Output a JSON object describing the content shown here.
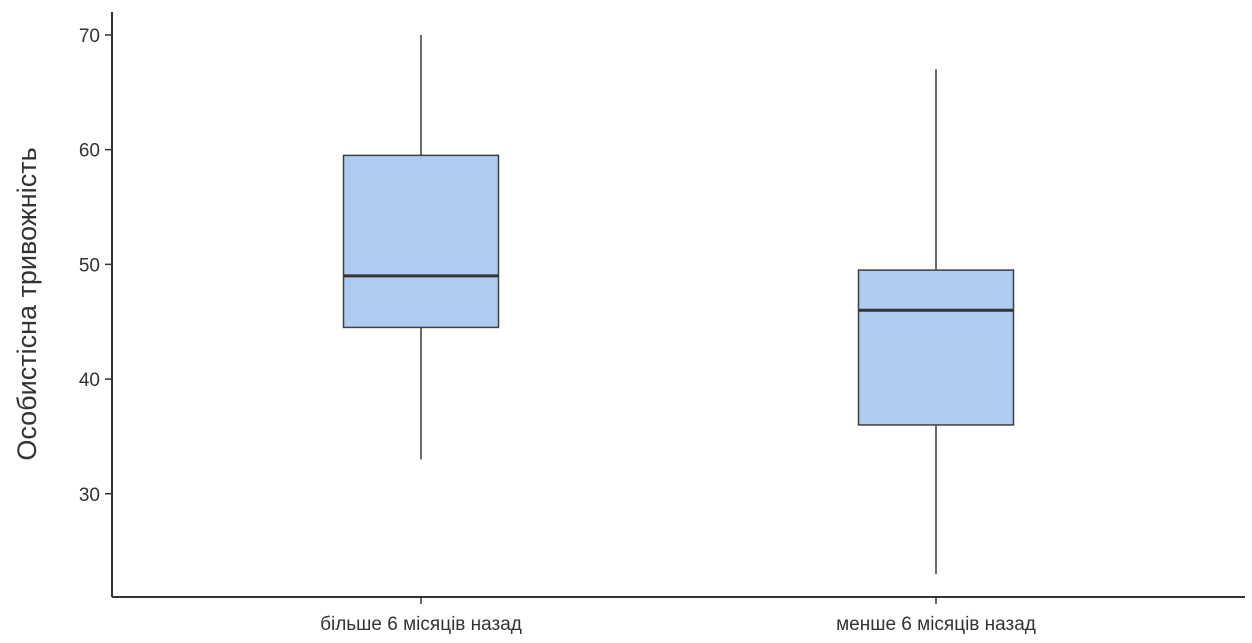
{
  "chart_data": {
    "type": "box",
    "title": "",
    "xlabel": "",
    "ylabel": "Особистісна тривожність",
    "categories": [
      "більше 6 місяців назад",
      "менше 6 місяців назад"
    ],
    "boxes": [
      {
        "category": "більше 6 місяців назад",
        "min": 33,
        "q1": 44.5,
        "median": 49,
        "q3": 59.5,
        "max": 70
      },
      {
        "category": "менше 6 місяців назад",
        "min": 23,
        "q1": 36,
        "median": 46,
        "q3": 49.5,
        "max": 67
      }
    ],
    "yticks": [
      30,
      40,
      50,
      60,
      70
    ],
    "ylim": [
      21,
      72
    ],
    "grid": false,
    "colors": {
      "box_fill": "#aecbf0",
      "box_stroke": "#3f3f3f",
      "whisker": "#6b6b6b",
      "axis": "#333333"
    }
  }
}
